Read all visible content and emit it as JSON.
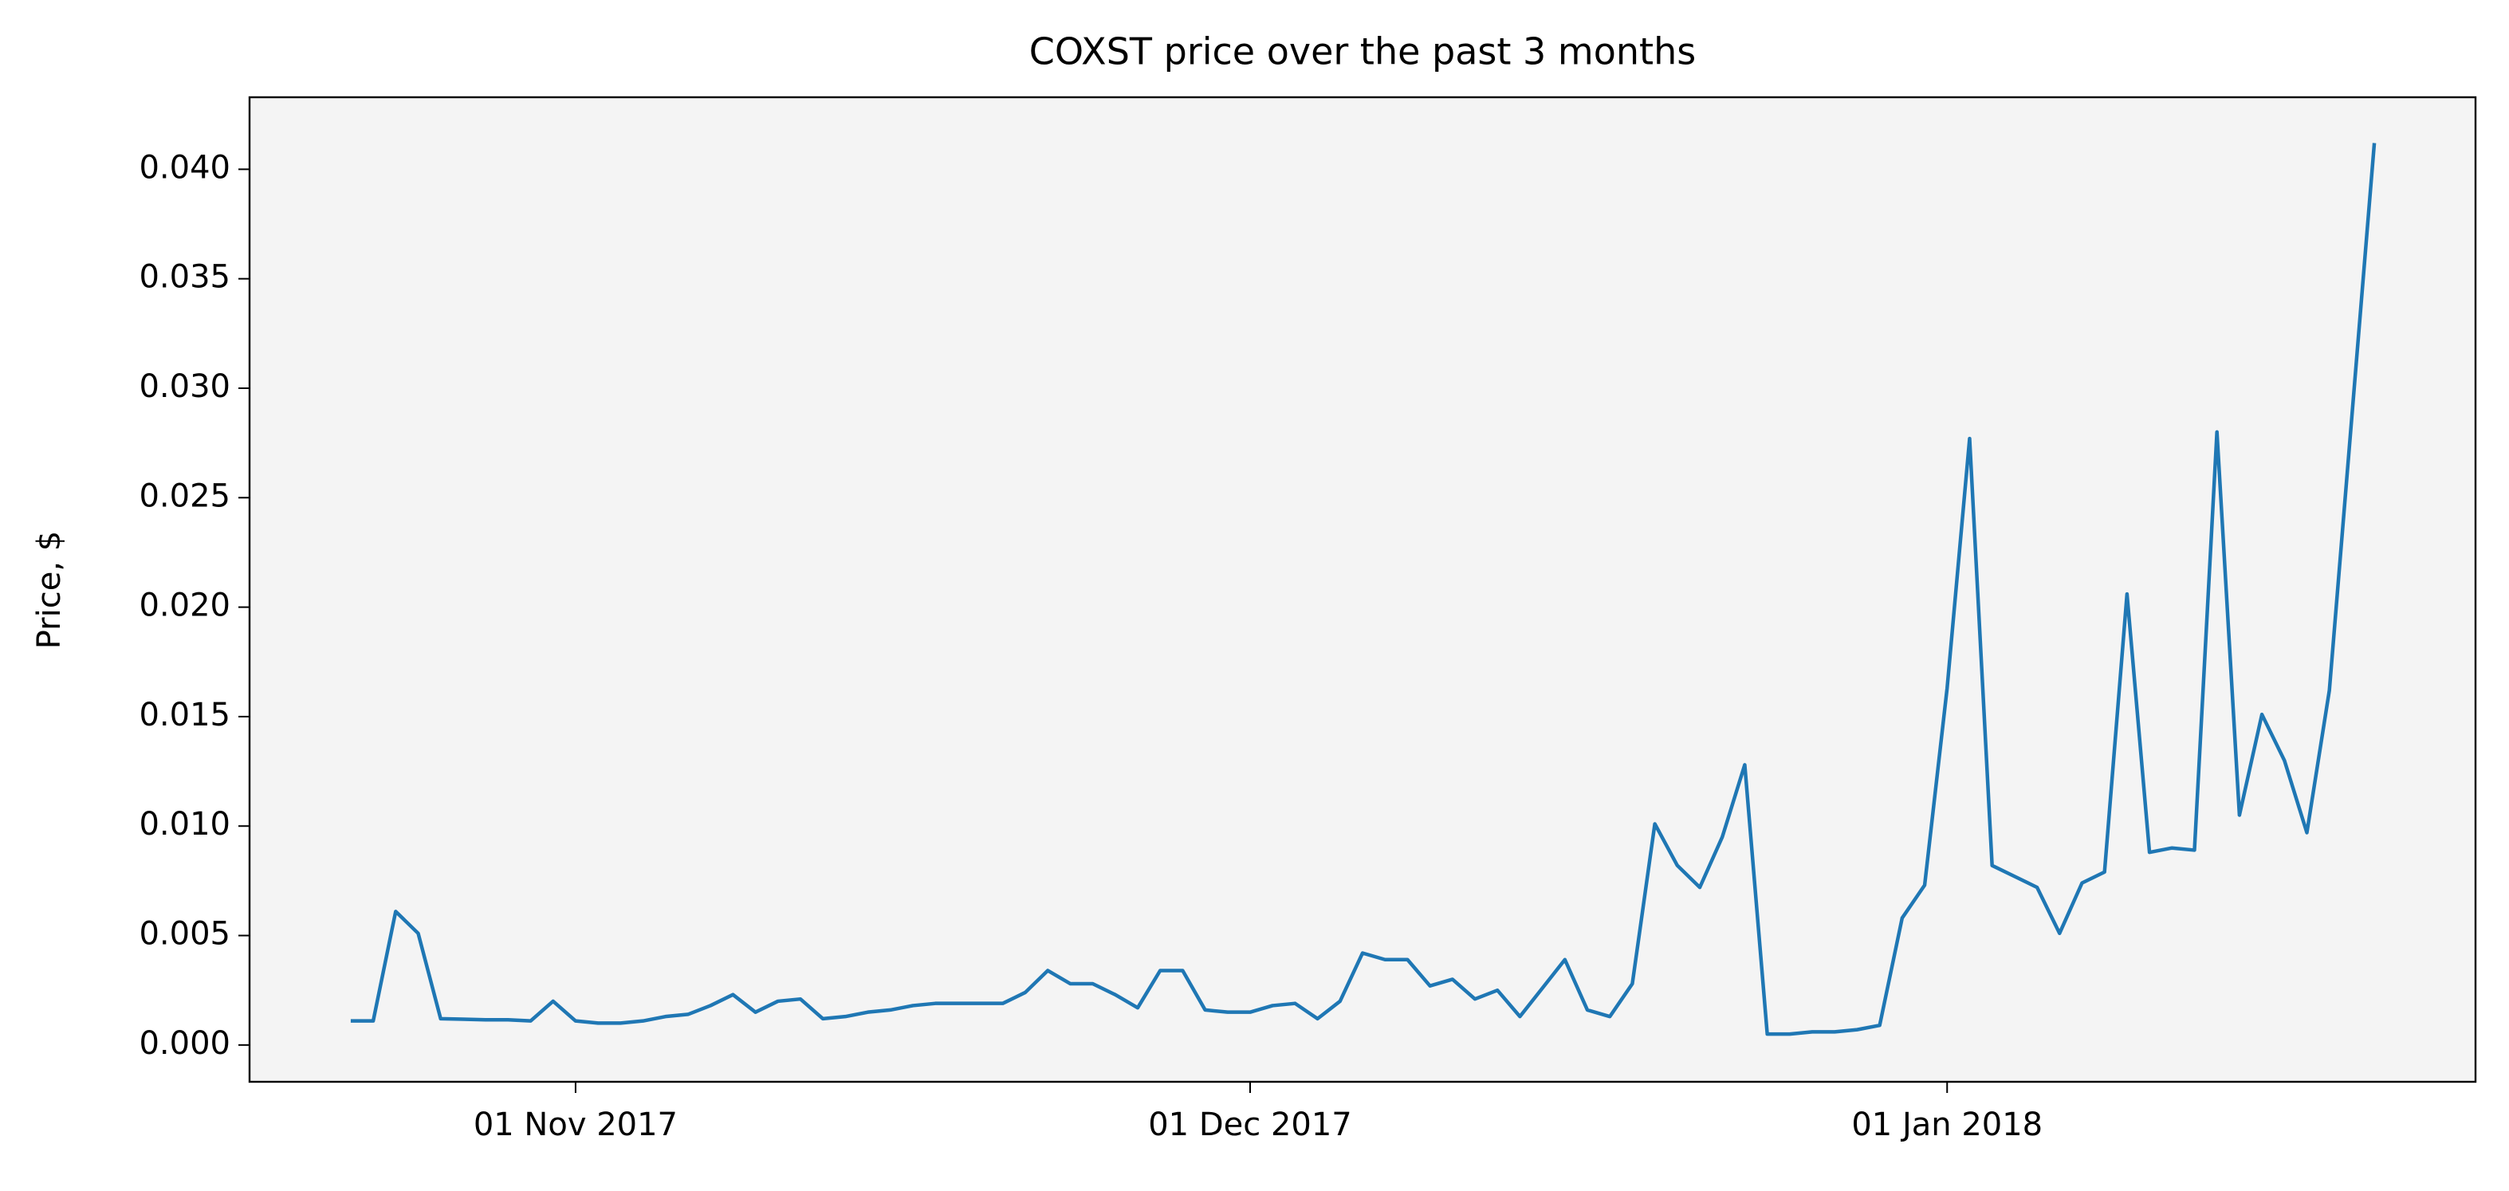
{
  "chart_data": {
    "type": "line",
    "title": "COXST price over the past 3 months",
    "ylabel": "Price, $",
    "color": "#1f77b4",
    "x": [
      "2017-10-22",
      "2017-10-23",
      "2017-10-24",
      "2017-10-25",
      "2017-10-26",
      "2017-10-27",
      "2017-10-28",
      "2017-10-29",
      "2017-10-30",
      "2017-10-31",
      "2017-11-01",
      "2017-11-02",
      "2017-11-03",
      "2017-11-04",
      "2017-11-05",
      "2017-11-06",
      "2017-11-07",
      "2017-11-08",
      "2017-11-09",
      "2017-11-10",
      "2017-11-11",
      "2017-11-12",
      "2017-11-13",
      "2017-11-14",
      "2017-11-15",
      "2017-11-16",
      "2017-11-17",
      "2017-11-18",
      "2017-11-19",
      "2017-11-20",
      "2017-11-21",
      "2017-11-22",
      "2017-11-23",
      "2017-11-24",
      "2017-11-25",
      "2017-11-26",
      "2017-11-27",
      "2017-11-28",
      "2017-11-29",
      "2017-11-30",
      "2017-12-01",
      "2017-12-02",
      "2017-12-03",
      "2017-12-04",
      "2017-12-05",
      "2017-12-06",
      "2017-12-07",
      "2017-12-08",
      "2017-12-09",
      "2017-12-10",
      "2017-12-11",
      "2017-12-12",
      "2017-12-13",
      "2017-12-14",
      "2017-12-15",
      "2017-12-16",
      "2017-12-17",
      "2017-12-18",
      "2017-12-19",
      "2017-12-20",
      "2017-12-21",
      "2017-12-22",
      "2017-12-23",
      "2017-12-24",
      "2017-12-25",
      "2017-12-26",
      "2017-12-27",
      "2017-12-28",
      "2017-12-29",
      "2017-12-30",
      "2017-12-31",
      "2018-01-01",
      "2018-01-02",
      "2018-01-03",
      "2018-01-04",
      "2018-01-05",
      "2018-01-06",
      "2018-01-07",
      "2018-01-08",
      "2018-01-09",
      "2018-01-10",
      "2018-01-11",
      "2018-01-12",
      "2018-01-13",
      "2018-01-14",
      "2018-01-15",
      "2018-01-16",
      "2018-01-17",
      "2018-01-18",
      "2018-01-20"
    ],
    "values": [
      0.0011,
      0.0011,
      0.0061,
      0.0051,
      0.0012,
      0.00118,
      0.00115,
      0.00115,
      0.0011,
      0.002,
      0.0011,
      0.001,
      0.001,
      0.0011,
      0.0013,
      0.0014,
      0.0018,
      0.0023,
      0.0015,
      0.002,
      0.0021,
      0.0012,
      0.0013,
      0.0015,
      0.0016,
      0.0018,
      0.0019,
      0.0019,
      0.0019,
      0.0019,
      0.0024,
      0.0034,
      0.0028,
      0.0028,
      0.0023,
      0.0017,
      0.0034,
      0.0034,
      0.0016,
      0.0015,
      0.0015,
      0.0018,
      0.0019,
      0.0012,
      0.002,
      0.0042,
      0.0039,
      0.0039,
      0.0027,
      0.003,
      0.0021,
      0.0025,
      0.0013,
      0.0026,
      0.0039,
      0.0016,
      0.0013,
      0.0028,
      0.0101,
      0.0082,
      0.0072,
      0.0095,
      0.0128,
      0.0005,
      0.0005,
      0.0006,
      0.0006,
      0.0007,
      0.0009,
      0.0058,
      0.0073,
      0.0163,
      0.0277,
      0.0082,
      0.0077,
      0.0072,
      0.0051,
      0.0074,
      0.0079,
      0.0206,
      0.0088,
      0.009,
      0.0089,
      0.028,
      0.0105,
      0.0151,
      0.013,
      0.0097,
      0.0162,
      0.0412
    ],
    "xlim": [
      "2017-10-17T12:00",
      "2018-01-24T12:00"
    ],
    "xticks": [
      {
        "value": "2017-11-01",
        "label": "01 Nov 2017"
      },
      {
        "value": "2017-12-01",
        "label": "01 Dec 2017"
      },
      {
        "value": "2018-01-01",
        "label": "01 Jan 2018"
      }
    ],
    "ylim": [
      -0.00168,
      0.04329
    ],
    "yticks": [
      {
        "value": 0,
        "label": "0.000"
      },
      0.005,
      {
        "value": 0.01,
        "label": "0.010"
      },
      0.015,
      {
        "value": 0.02,
        "label": "0.020"
      },
      0.025,
      {
        "value": 0.03,
        "label": "0.030"
      },
      0.035,
      {
        "value": 0.04,
        "label": "0.040"
      }
    ],
    "grid": false
  }
}
